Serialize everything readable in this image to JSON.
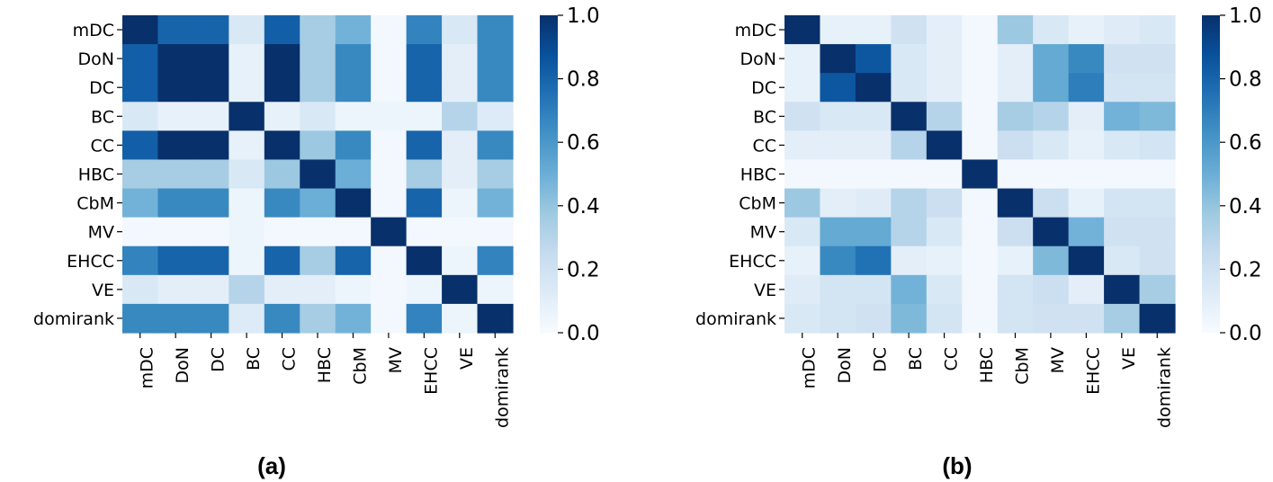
{
  "chart_data": [
    {
      "type": "heatmap",
      "panel_label": "(a)",
      "rows": [
        "mDC",
        "DoN",
        "DC",
        "BC",
        "CC",
        "HBC",
        "CbM",
        "MV",
        "EHCC",
        "VE",
        "domirank"
      ],
      "cols": [
        "mDC",
        "DoN",
        "DC",
        "BC",
        "CC",
        "HBC",
        "CbM",
        "MV",
        "EHCC",
        "VE",
        "domirank"
      ],
      "values": [
        [
          1.0,
          0.8,
          0.8,
          0.15,
          0.82,
          0.35,
          0.48,
          0.02,
          0.68,
          0.15,
          0.66
        ],
        [
          0.82,
          1.0,
          1.0,
          0.08,
          1.0,
          0.35,
          0.66,
          0.02,
          0.8,
          0.1,
          0.66
        ],
        [
          0.82,
          1.0,
          1.0,
          0.08,
          1.0,
          0.35,
          0.66,
          0.02,
          0.8,
          0.1,
          0.66
        ],
        [
          0.15,
          0.08,
          0.08,
          1.0,
          0.08,
          0.15,
          0.05,
          0.05,
          0.05,
          0.3,
          0.13
        ],
        [
          0.82,
          1.0,
          1.0,
          0.08,
          1.0,
          0.38,
          0.66,
          0.02,
          0.8,
          0.1,
          0.66
        ],
        [
          0.35,
          0.35,
          0.35,
          0.15,
          0.38,
          1.0,
          0.5,
          0.02,
          0.35,
          0.1,
          0.35
        ],
        [
          0.48,
          0.66,
          0.66,
          0.05,
          0.66,
          0.5,
          1.0,
          0.02,
          0.8,
          0.05,
          0.48
        ],
        [
          0.02,
          0.02,
          0.02,
          0.05,
          0.02,
          0.02,
          0.02,
          1.0,
          0.02,
          0.02,
          0.02
        ],
        [
          0.68,
          0.8,
          0.8,
          0.05,
          0.8,
          0.35,
          0.8,
          0.02,
          1.0,
          0.05,
          0.68
        ],
        [
          0.15,
          0.1,
          0.1,
          0.3,
          0.1,
          0.1,
          0.05,
          0.02,
          0.05,
          1.0,
          0.05
        ],
        [
          0.66,
          0.66,
          0.66,
          0.13,
          0.66,
          0.35,
          0.48,
          0.02,
          0.68,
          0.05,
          1.0
        ]
      ],
      "colorbar": {
        "range": [
          0.0,
          1.0
        ],
        "ticks": [
          "0.0",
          "0.2",
          "0.4",
          "0.6",
          "0.8",
          "1.0"
        ],
        "colormap": "Blues"
      }
    },
    {
      "type": "heatmap",
      "panel_label": "(b)",
      "rows": [
        "mDC",
        "DoN",
        "DC",
        "BC",
        "CC",
        "HBC",
        "CbM",
        "MV",
        "EHCC",
        "VE",
        "domirank"
      ],
      "cols": [
        "mDC",
        "DoN",
        "DC",
        "BC",
        "CC",
        "HBC",
        "CbM",
        "MV",
        "EHCC",
        "VE",
        "domirank"
      ],
      "values": [
        [
          1.0,
          0.08,
          0.08,
          0.2,
          0.1,
          0.02,
          0.38,
          0.15,
          0.08,
          0.12,
          0.15
        ],
        [
          0.08,
          1.0,
          0.85,
          0.15,
          0.1,
          0.02,
          0.1,
          0.52,
          0.66,
          0.2,
          0.2
        ],
        [
          0.08,
          0.85,
          1.0,
          0.15,
          0.1,
          0.02,
          0.1,
          0.52,
          0.7,
          0.18,
          0.18
        ],
        [
          0.2,
          0.15,
          0.15,
          1.0,
          0.3,
          0.02,
          0.35,
          0.3,
          0.1,
          0.48,
          0.45
        ],
        [
          0.1,
          0.1,
          0.1,
          0.3,
          1.0,
          0.02,
          0.22,
          0.15,
          0.08,
          0.15,
          0.18
        ],
        [
          0.02,
          0.02,
          0.02,
          0.02,
          0.02,
          1.0,
          0.02,
          0.02,
          0.02,
          0.02,
          0.02
        ],
        [
          0.38,
          0.1,
          0.12,
          0.3,
          0.22,
          0.02,
          1.0,
          0.22,
          0.08,
          0.18,
          0.18
        ],
        [
          0.15,
          0.52,
          0.52,
          0.3,
          0.15,
          0.02,
          0.22,
          1.0,
          0.48,
          0.2,
          0.2
        ],
        [
          0.08,
          0.66,
          0.75,
          0.1,
          0.08,
          0.02,
          0.08,
          0.45,
          1.0,
          0.15,
          0.2
        ],
        [
          0.12,
          0.18,
          0.18,
          0.48,
          0.15,
          0.02,
          0.18,
          0.22,
          0.1,
          1.0,
          0.35
        ],
        [
          0.15,
          0.18,
          0.2,
          0.45,
          0.18,
          0.02,
          0.18,
          0.2,
          0.2,
          0.35,
          1.0
        ]
      ],
      "colorbar": {
        "range": [
          0.0,
          1.0
        ],
        "ticks": [
          "0.0",
          "0.2",
          "0.4",
          "0.6",
          "0.8",
          "1.0"
        ],
        "colormap": "Blues"
      }
    }
  ]
}
